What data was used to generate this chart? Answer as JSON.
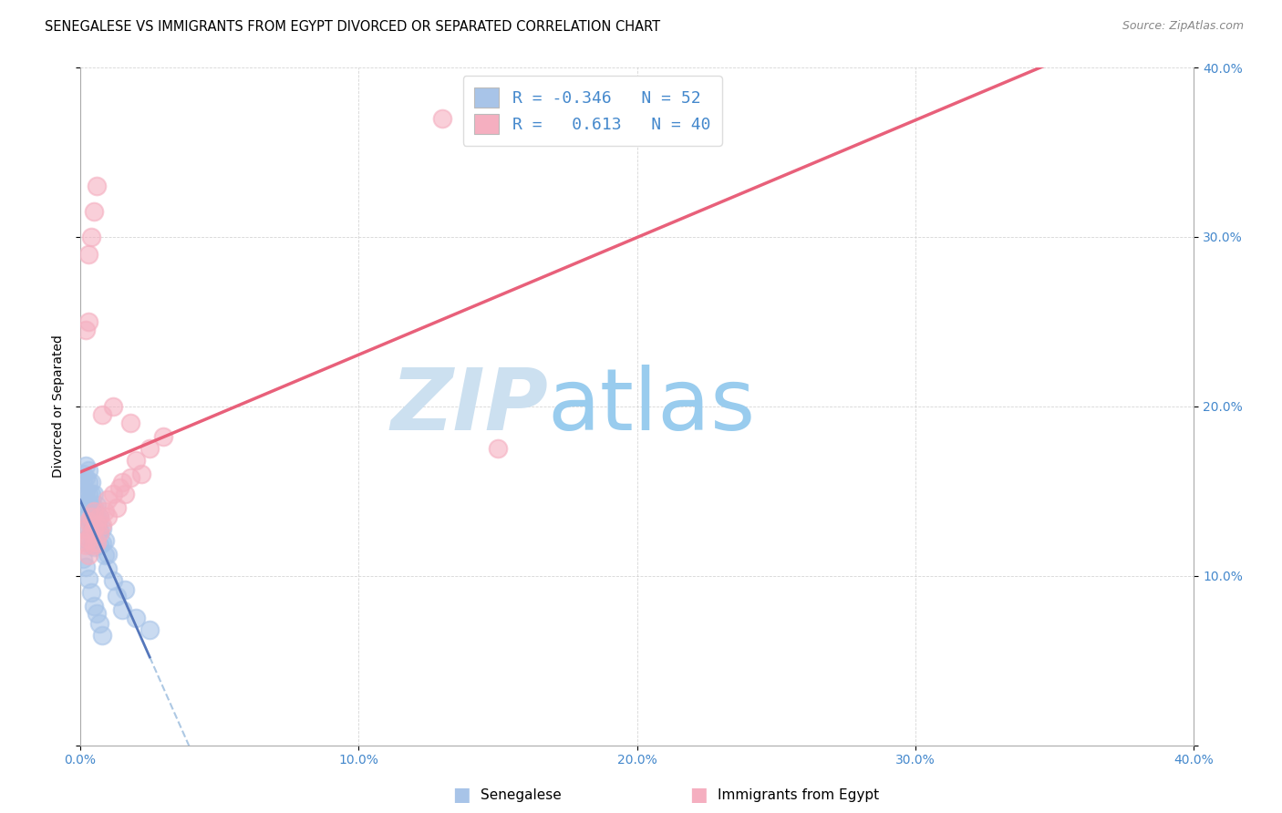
{
  "title": "SENEGALESE VS IMMIGRANTS FROM EGYPT DIVORCED OR SEPARATED CORRELATION CHART",
  "source": "Source: ZipAtlas.com",
  "ylabel": "Divorced or Separated",
  "xlim": [
    0.0,
    0.4
  ],
  "ylim": [
    0.0,
    0.4
  ],
  "xtick_vals": [
    0.0,
    0.1,
    0.2,
    0.3,
    0.4
  ],
  "ytick_vals": [
    0.0,
    0.1,
    0.2,
    0.3,
    0.4
  ],
  "blue_scatter_color": "#a8c4e8",
  "pink_scatter_color": "#f5afc0",
  "blue_line_color": "#5577bb",
  "pink_line_color": "#e8607a",
  "blue_dashed_color": "#99bbdd",
  "right_tick_color": "#4488cc",
  "x_tick_color": "#4488cc",
  "watermark_zip_color": "#cce0f0",
  "watermark_atlas_color": "#99ccee",
  "legend_label1": "Senegalese",
  "legend_label2": "Immigrants from Egypt",
  "blue_scatter_x": [
    0.001,
    0.001,
    0.001,
    0.002,
    0.002,
    0.002,
    0.002,
    0.002,
    0.003,
    0.003,
    0.003,
    0.003,
    0.003,
    0.003,
    0.003,
    0.004,
    0.004,
    0.004,
    0.004,
    0.004,
    0.004,
    0.005,
    0.005,
    0.005,
    0.005,
    0.005,
    0.006,
    0.006,
    0.006,
    0.007,
    0.007,
    0.007,
    0.008,
    0.008,
    0.009,
    0.009,
    0.01,
    0.01,
    0.012,
    0.013,
    0.015,
    0.016,
    0.02,
    0.025,
    0.001,
    0.002,
    0.003,
    0.004,
    0.005,
    0.006,
    0.007,
    0.008
  ],
  "blue_scatter_y": [
    0.16,
    0.155,
    0.148,
    0.165,
    0.158,
    0.15,
    0.143,
    0.135,
    0.162,
    0.155,
    0.148,
    0.142,
    0.135,
    0.128,
    0.12,
    0.155,
    0.148,
    0.14,
    0.133,
    0.126,
    0.118,
    0.148,
    0.14,
    0.133,
    0.125,
    0.117,
    0.142,
    0.134,
    0.126,
    0.135,
    0.127,
    0.118,
    0.128,
    0.119,
    0.121,
    0.112,
    0.113,
    0.104,
    0.097,
    0.088,
    0.08,
    0.092,
    0.075,
    0.068,
    0.11,
    0.105,
    0.098,
    0.09,
    0.082,
    0.078,
    0.072,
    0.065
  ],
  "pink_scatter_x": [
    0.001,
    0.002,
    0.002,
    0.003,
    0.003,
    0.003,
    0.004,
    0.004,
    0.005,
    0.005,
    0.005,
    0.006,
    0.006,
    0.007,
    0.007,
    0.008,
    0.009,
    0.01,
    0.01,
    0.012,
    0.013,
    0.014,
    0.015,
    0.016,
    0.018,
    0.02,
    0.022,
    0.025,
    0.03,
    0.003,
    0.004,
    0.005,
    0.006,
    0.13,
    0.15,
    0.002,
    0.003,
    0.008,
    0.012,
    0.018
  ],
  "pink_scatter_y": [
    0.12,
    0.128,
    0.118,
    0.132,
    0.122,
    0.112,
    0.135,
    0.125,
    0.138,
    0.128,
    0.118,
    0.13,
    0.12,
    0.135,
    0.125,
    0.13,
    0.138,
    0.145,
    0.135,
    0.148,
    0.14,
    0.152,
    0.155,
    0.148,
    0.158,
    0.168,
    0.16,
    0.175,
    0.182,
    0.29,
    0.3,
    0.315,
    0.33,
    0.37,
    0.175,
    0.245,
    0.25,
    0.195,
    0.2,
    0.19
  ],
  "title_fontsize": 10.5,
  "source_fontsize": 9,
  "axis_label_fontsize": 10,
  "tick_fontsize": 10,
  "legend_fontsize": 13
}
